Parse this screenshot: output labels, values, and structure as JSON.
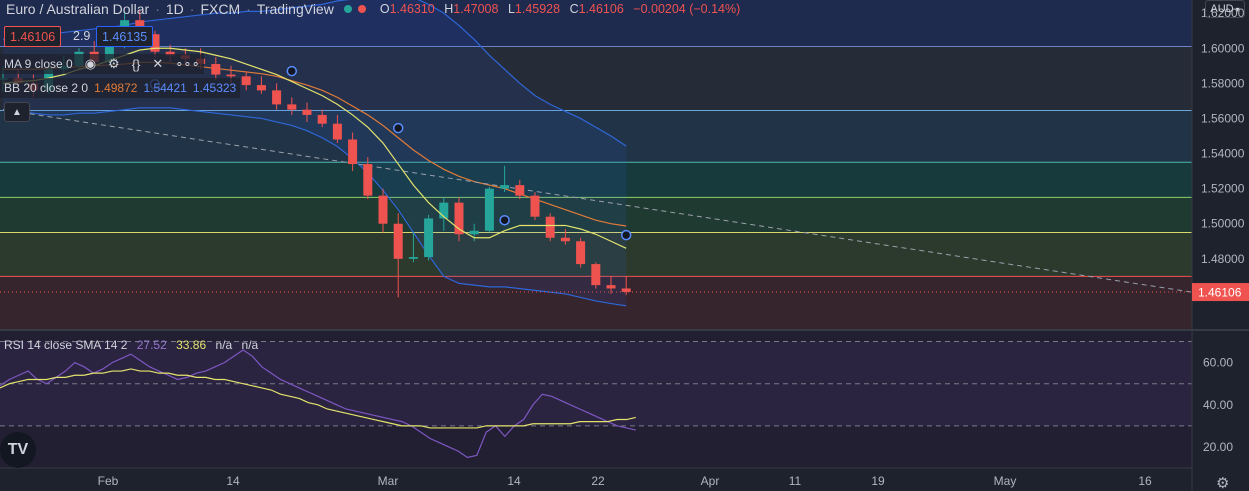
{
  "header": {
    "symbol": "Euro / Australian Dollar",
    "interval": "1D",
    "exchange": "FXCM",
    "source": "TradingView",
    "open_label": "O",
    "open": "1.46310",
    "high_label": "H",
    "high": "1.47008",
    "low_label": "L",
    "low": "1.45928",
    "close_label": "C",
    "close": "1.46106",
    "change": "−0.00204 (−0.14%)"
  },
  "price_boxes": {
    "sell": "1.46106",
    "spread": "2.9",
    "buy": "1.46135"
  },
  "legend": {
    "ma": "MA 9 close 0",
    "bb_label": "BB 20 close 2 0",
    "bb_basis": "1.49872",
    "bb_upper": "1.54421",
    "bb_lower": "1.45323"
  },
  "rsi_legend": {
    "label": "RSI 14 close SMA 14 2",
    "rsi": "27.52",
    "sma": "33.86",
    "na1": "n/a",
    "na2": "n/a"
  },
  "currency": "AUD",
  "last_price_tag": "1.46106",
  "logo_text": "TV",
  "colors": {
    "up": "#26a69a",
    "down": "#ef5350",
    "ma": "#e4e36d",
    "bb_basis": "#e07b39",
    "bb_band": "#2f66d8",
    "rsi": "#7e57c2",
    "rsi_sma": "#e4e36d"
  },
  "chart_data": {
    "type": "candlestick",
    "price_axis": {
      "ticks": [
        "1.62000",
        "1.60000",
        "1.58000",
        "1.56000",
        "1.54000",
        "1.52000",
        "1.50000",
        "1.48000"
      ],
      "ylim": [
        1.44,
        1.6275
      ]
    },
    "time_axis": {
      "ticks": [
        "Feb",
        "14",
        "Mar",
        "14",
        "22",
        "Apr",
        "11",
        "19",
        "May",
        "16"
      ]
    },
    "candles": [
      {
        "o": 1.582,
        "h": 1.59,
        "l": 1.575,
        "c": 1.583
      },
      {
        "o": 1.583,
        "h": 1.588,
        "l": 1.577,
        "c": 1.58
      },
      {
        "o": 1.58,
        "h": 1.585,
        "l": 1.572,
        "c": 1.576
      },
      {
        "o": 1.576,
        "h": 1.59,
        "l": 1.574,
        "c": 1.588
      },
      {
        "o": 1.588,
        "h": 1.596,
        "l": 1.585,
        "c": 1.59
      },
      {
        "o": 1.59,
        "h": 1.6,
        "l": 1.588,
        "c": 1.598
      },
      {
        "o": 1.598,
        "h": 1.604,
        "l": 1.589,
        "c": 1.592
      },
      {
        "o": 1.592,
        "h": 1.608,
        "l": 1.59,
        "c": 1.606
      },
      {
        "o": 1.606,
        "h": 1.62,
        "l": 1.6,
        "c": 1.616
      },
      {
        "o": 1.616,
        "h": 1.622,
        "l": 1.605,
        "c": 1.608
      },
      {
        "o": 1.608,
        "h": 1.61,
        "l": 1.595,
        "c": 1.598
      },
      {
        "o": 1.598,
        "h": 1.602,
        "l": 1.592,
        "c": 1.596
      },
      {
        "o": 1.596,
        "h": 1.6,
        "l": 1.59,
        "c": 1.594
      },
      {
        "o": 1.594,
        "h": 1.6,
        "l": 1.588,
        "c": 1.591
      },
      {
        "o": 1.591,
        "h": 1.595,
        "l": 1.582,
        "c": 1.585
      },
      {
        "o": 1.585,
        "h": 1.59,
        "l": 1.579,
        "c": 1.584
      },
      {
        "o": 1.584,
        "h": 1.587,
        "l": 1.576,
        "c": 1.579
      },
      {
        "o": 1.579,
        "h": 1.584,
        "l": 1.574,
        "c": 1.576
      },
      {
        "o": 1.576,
        "h": 1.58,
        "l": 1.565,
        "c": 1.568
      },
      {
        "o": 1.568,
        "h": 1.572,
        "l": 1.562,
        "c": 1.565
      },
      {
        "o": 1.565,
        "h": 1.569,
        "l": 1.558,
        "c": 1.562
      },
      {
        "o": 1.562,
        "h": 1.565,
        "l": 1.555,
        "c": 1.557
      },
      {
        "o": 1.557,
        "h": 1.562,
        "l": 1.546,
        "c": 1.548
      },
      {
        "o": 1.548,
        "h": 1.552,
        "l": 1.53,
        "c": 1.534
      },
      {
        "o": 1.534,
        "h": 1.538,
        "l": 1.514,
        "c": 1.516
      },
      {
        "o": 1.516,
        "h": 1.52,
        "l": 1.495,
        "c": 1.5
      },
      {
        "o": 1.5,
        "h": 1.506,
        "l": 1.458,
        "c": 1.48
      },
      {
        "o": 1.48,
        "h": 1.495,
        "l": 1.478,
        "c": 1.481
      },
      {
        "o": 1.481,
        "h": 1.505,
        "l": 1.479,
        "c": 1.503
      },
      {
        "o": 1.503,
        "h": 1.515,
        "l": 1.496,
        "c": 1.512
      },
      {
        "o": 1.512,
        "h": 1.515,
        "l": 1.49,
        "c": 1.494
      },
      {
        "o": 1.494,
        "h": 1.5,
        "l": 1.49,
        "c": 1.496
      },
      {
        "o": 1.496,
        "h": 1.521,
        "l": 1.495,
        "c": 1.52
      },
      {
        "o": 1.52,
        "h": 1.533,
        "l": 1.518,
        "c": 1.522
      },
      {
        "o": 1.522,
        "h": 1.525,
        "l": 1.514,
        "c": 1.516
      },
      {
        "o": 1.516,
        "h": 1.518,
        "l": 1.502,
        "c": 1.504
      },
      {
        "o": 1.504,
        "h": 1.506,
        "l": 1.49,
        "c": 1.492
      },
      {
        "o": 1.492,
        "h": 1.497,
        "l": 1.488,
        "c": 1.49
      },
      {
        "o": 1.49,
        "h": 1.492,
        "l": 1.475,
        "c": 1.477
      },
      {
        "o": 1.477,
        "h": 1.478,
        "l": 1.463,
        "c": 1.465
      },
      {
        "o": 1.465,
        "h": 1.47,
        "l": 1.46,
        "c": 1.4631
      },
      {
        "o": 1.4631,
        "h": 1.4701,
        "l": 1.4593,
        "c": 1.4611
      }
    ],
    "ma9": [
      1.58,
      1.581,
      1.5815,
      1.583,
      1.585,
      1.588,
      1.59,
      1.593,
      1.596,
      1.599,
      1.6,
      1.6,
      1.599,
      1.598,
      1.596,
      1.594,
      1.591,
      1.588,
      1.585,
      1.581,
      1.577,
      1.573,
      1.568,
      1.562,
      1.555,
      1.546,
      1.534,
      1.522,
      1.512,
      1.504,
      1.497,
      1.492,
      1.492,
      1.496,
      1.499,
      1.499,
      1.499,
      1.499,
      1.497,
      1.494,
      1.49,
      1.486
    ],
    "bb_basis": [
      1.588,
      1.588,
      1.588,
      1.5885,
      1.589,
      1.5895,
      1.59,
      1.5905,
      1.591,
      1.592,
      1.592,
      1.5915,
      1.5905,
      1.5895,
      1.5885,
      1.5875,
      1.5865,
      1.5855,
      1.584,
      1.5815,
      1.579,
      1.576,
      1.572,
      1.567,
      1.562,
      1.556,
      1.549,
      1.542,
      1.536,
      1.531,
      1.527,
      1.524,
      1.522,
      1.52,
      1.517,
      1.514,
      1.511,
      1.508,
      1.505,
      1.502,
      1.5,
      1.4987
    ],
    "bb_upper": [
      1.605,
      1.606,
      1.607,
      1.608,
      1.609,
      1.61,
      1.611,
      1.612,
      1.613,
      1.615,
      1.616,
      1.617,
      1.618,
      1.619,
      1.62,
      1.62,
      1.621,
      1.621,
      1.622,
      1.623,
      1.624,
      1.625,
      1.627,
      1.628,
      1.629,
      1.63,
      1.63,
      1.629,
      1.625,
      1.62,
      1.613,
      1.605,
      1.596,
      1.588,
      1.58,
      1.573,
      1.568,
      1.564,
      1.56,
      1.555,
      1.55,
      1.5442
    ],
    "bb_lower": [
      1.565,
      1.564,
      1.563,
      1.562,
      1.562,
      1.563,
      1.563,
      1.564,
      1.565,
      1.566,
      1.566,
      1.566,
      1.565,
      1.564,
      1.563,
      1.562,
      1.561,
      1.56,
      1.558,
      1.556,
      1.553,
      1.549,
      1.544,
      1.537,
      1.529,
      1.519,
      1.508,
      1.495,
      1.482,
      1.47,
      1.466,
      1.465,
      1.464,
      1.464,
      1.463,
      1.462,
      1.461,
      1.46,
      1.458,
      1.456,
      1.4545,
      1.4532
    ],
    "horizontal_levels": [
      1.601,
      1.5645,
      1.535,
      1.515,
      1.495,
      1.47
    ],
    "dashed_trend": {
      "from": [
        0,
        1.565
      ],
      "to": [
        86,
        1.461
      ]
    },
    "current_price": 1.46106,
    "rsi_axis": {
      "ticks": [
        "60.00",
        "40.00",
        "20.00"
      ],
      "ylim": [
        10,
        75
      ],
      "bands": [
        70,
        50,
        30
      ]
    },
    "rsi": [
      49,
      52,
      54,
      56,
      52,
      50,
      53,
      56,
      60,
      58,
      55,
      57,
      60,
      62,
      64,
      61,
      58,
      56,
      54,
      52,
      53,
      55,
      56,
      58,
      60,
      63,
      66,
      63,
      58,
      55,
      52,
      50,
      48,
      46,
      44,
      42,
      40,
      38,
      37,
      36,
      35,
      34,
      33,
      32,
      30,
      27,
      24,
      22,
      20,
      18,
      15,
      16,
      27,
      30,
      25,
      30,
      33,
      40,
      45,
      44,
      42,
      40,
      38,
      36,
      34,
      32,
      30,
      29,
      28
    ],
    "rsi_sma": [
      48,
      50,
      51,
      52,
      52,
      52,
      53,
      53,
      54,
      54,
      55,
      55,
      56,
      56,
      57,
      56,
      56,
      55,
      55,
      54,
      54,
      53,
      53,
      52,
      52,
      51,
      50,
      49,
      48,
      47,
      45,
      44,
      43,
      41,
      40,
      38,
      37,
      36,
      35,
      34,
      33,
      32,
      31,
      30,
      30,
      30,
      29,
      29,
      29,
      29,
      29,
      29,
      30,
      30,
      30,
      30,
      30,
      31,
      31,
      31,
      31,
      31,
      32,
      32,
      32,
      32,
      33,
      33,
      34
    ]
  }
}
